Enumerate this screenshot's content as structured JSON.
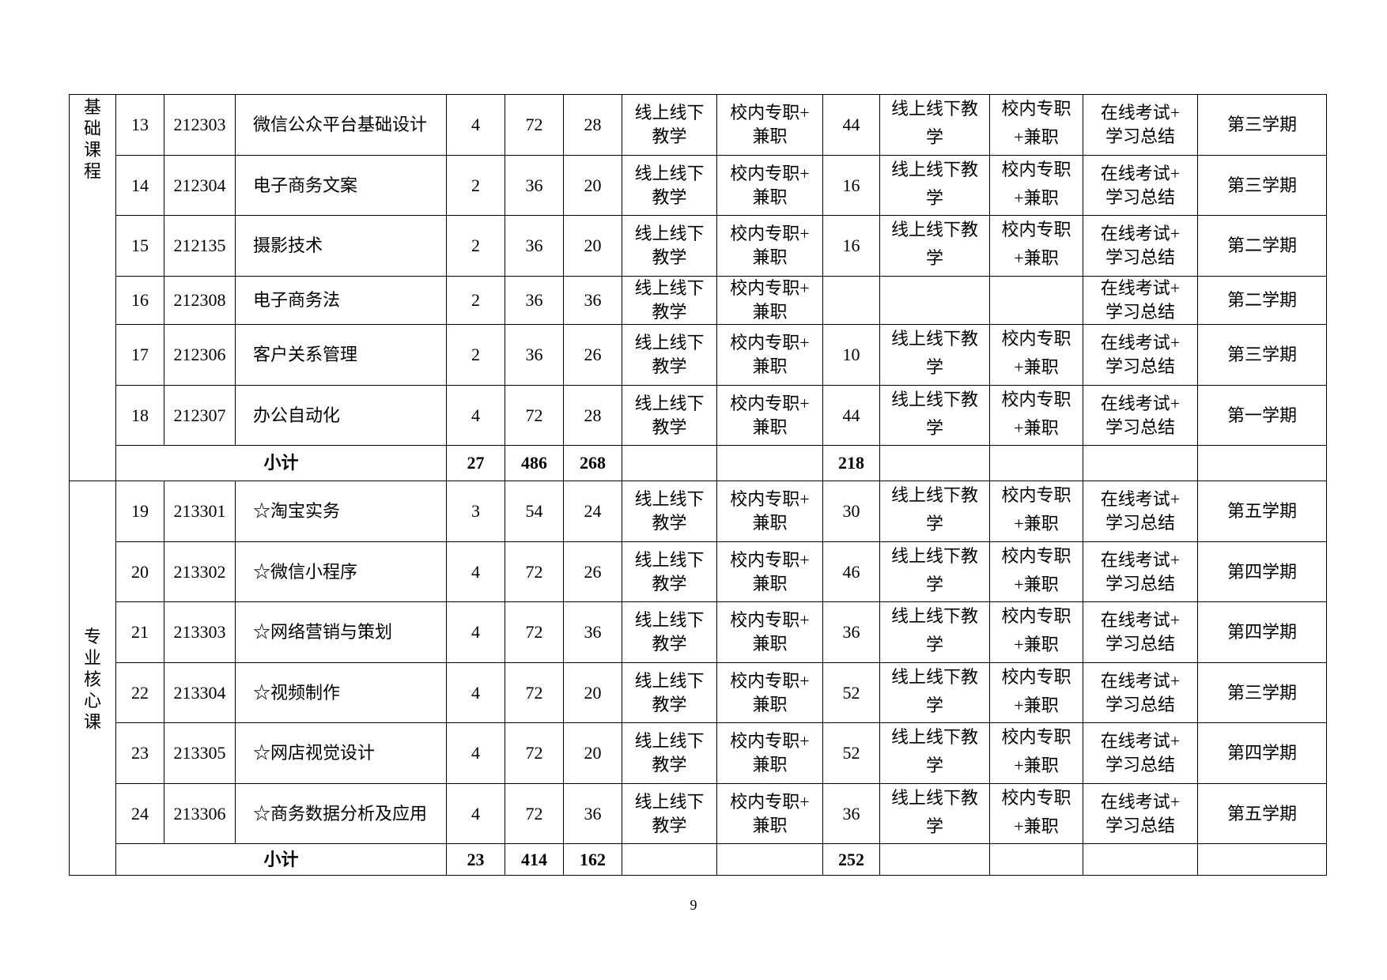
{
  "sections": [
    {
      "label": "基础课程",
      "rows": [
        {
          "no": "13",
          "code": "212303",
          "name": "微信公众平台基础设计",
          "credits": "4",
          "hours": "72",
          "theory": "28",
          "method1": "线上线下\n教学",
          "teacher1": "校内专职+\n兼职",
          "practice": "44",
          "method2": "线上线下教\n学",
          "teacher2": "校内专职\n+兼职",
          "assessment": "在线考试+\n学习总结",
          "semester": "第三学期"
        },
        {
          "no": "14",
          "code": "212304",
          "name": "电子商务文案",
          "credits": "2",
          "hours": "36",
          "theory": "20",
          "method1": "线上线下\n教学",
          "teacher1": "校内专职+\n兼职",
          "practice": "16",
          "method2": "线上线下教\n学",
          "teacher2": "校内专职\n+兼职",
          "assessment": "在线考试+\n学习总结",
          "semester": "第三学期"
        },
        {
          "no": "15",
          "code": "212135",
          "name": "摄影技术",
          "credits": "2",
          "hours": "36",
          "theory": "20",
          "method1": "线上线下\n教学",
          "teacher1": "校内专职+\n兼职",
          "practice": "16",
          "method2": "线上线下教\n学",
          "teacher2": "校内专职\n+兼职",
          "assessment": "在线考试+\n学习总结",
          "semester": "第二学期"
        },
        {
          "no": "16",
          "code": "212308",
          "name": "电子商务法",
          "credits": "2",
          "hours": "36",
          "theory": "36",
          "method1": "线上线下\n教学",
          "teacher1": "校内专职+\n兼职",
          "practice": "",
          "method2": "",
          "teacher2": "",
          "assessment": "在线考试+\n学习总结",
          "semester": "第二学期"
        },
        {
          "no": "17",
          "code": "212306",
          "name": "客户关系管理",
          "credits": "2",
          "hours": "36",
          "theory": "26",
          "method1": "线上线下\n教学",
          "teacher1": "校内专职+\n兼职",
          "practice": "10",
          "method2": "线上线下教\n学",
          "teacher2": "校内专职\n+兼职",
          "assessment": "在线考试+\n学习总结",
          "semester": "第三学期"
        },
        {
          "no": "18",
          "code": "212307",
          "name": "办公自动化",
          "credits": "4",
          "hours": "72",
          "theory": "28",
          "method1": "线上线下\n教学",
          "teacher1": "校内专职+\n兼职",
          "practice": "44",
          "method2": "线上线下教\n学",
          "teacher2": "校内专职\n+兼职",
          "assessment": "在线考试+\n学习总结",
          "semester": "第一学期"
        }
      ],
      "subtotal": {
        "label": "小计",
        "credits": "27",
        "hours": "486",
        "theory": "268",
        "practice": "218"
      }
    },
    {
      "label": "专业核心课",
      "rows": [
        {
          "no": "19",
          "code": "213301",
          "name": "☆淘宝实务",
          "credits": "3",
          "hours": "54",
          "theory": "24",
          "method1": "线上线下\n教学",
          "teacher1": "校内专职+\n兼职",
          "practice": "30",
          "method2": "线上线下教\n学",
          "teacher2": "校内专职\n+兼职",
          "assessment": "在线考试+\n学习总结",
          "semester": "第五学期"
        },
        {
          "no": "20",
          "code": "213302",
          "name": "☆微信小程序",
          "credits": "4",
          "hours": "72",
          "theory": "26",
          "method1": "线上线下\n教学",
          "teacher1": "校内专职+\n兼职",
          "practice": "46",
          "method2": "线上线下教\n学",
          "teacher2": "校内专职\n+兼职",
          "assessment": "在线考试+\n学习总结",
          "semester": "第四学期"
        },
        {
          "no": "21",
          "code": "213303",
          "name": "☆网络营销与策划",
          "credits": "4",
          "hours": "72",
          "theory": "36",
          "method1": "线上线下\n教学",
          "teacher1": "校内专职+\n兼职",
          "practice": "36",
          "method2": "线上线下教\n学",
          "teacher2": "校内专职\n+兼职",
          "assessment": "在线考试+\n学习总结",
          "semester": "第四学期"
        },
        {
          "no": "22",
          "code": "213304",
          "name": "☆视频制作",
          "credits": "4",
          "hours": "72",
          "theory": "20",
          "method1": "线上线下\n教学",
          "teacher1": "校内专职+\n兼职",
          "practice": "52",
          "method2": "线上线下教\n学",
          "teacher2": "校内专职\n+兼职",
          "assessment": "在线考试+\n学习总结",
          "semester": "第三学期"
        },
        {
          "no": "23",
          "code": "213305",
          "name": "☆网店视觉设计",
          "credits": "4",
          "hours": "72",
          "theory": "20",
          "method1": "线上线下\n教学",
          "teacher1": "校内专职+\n兼职",
          "practice": "52",
          "method2": "线上线下教\n学",
          "teacher2": "校内专职\n+兼职",
          "assessment": "在线考试+\n学习总结",
          "semester": "第四学期"
        },
        {
          "no": "24",
          "code": "213306",
          "name": "☆商务数据分析及应用",
          "credits": "4",
          "hours": "72",
          "theory": "36",
          "method1": "线上线下\n教学",
          "teacher1": "校内专职+\n兼职",
          "practice": "36",
          "method2": "线上线下教\n学",
          "teacher2": "校内专职\n+兼职",
          "assessment": "在线考试+\n学习总结",
          "semester": "第五学期"
        }
      ],
      "subtotal": {
        "label": "小计",
        "credits": "23",
        "hours": "414",
        "theory": "162",
        "practice": "252"
      }
    }
  ],
  "page_number": "9"
}
